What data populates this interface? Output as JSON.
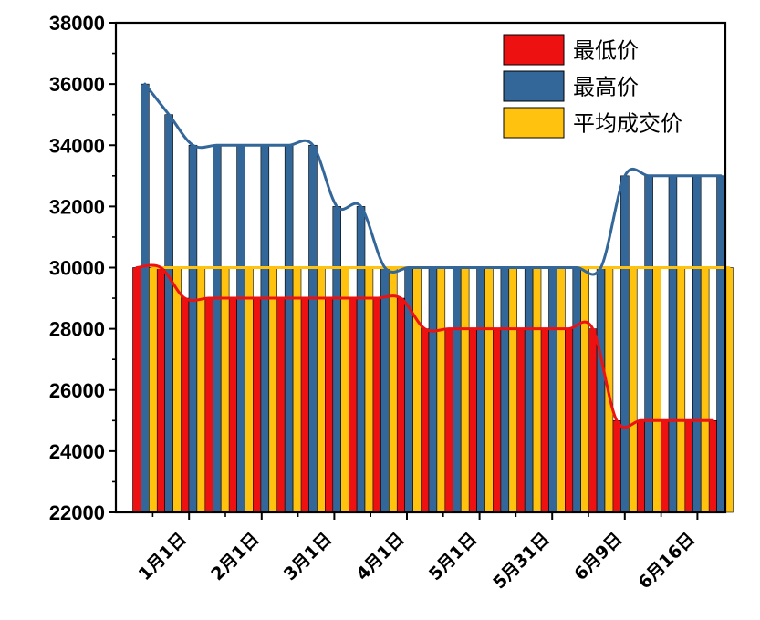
{
  "chart_data": {
    "type": "bar",
    "title": "",
    "xlabel": "",
    "ylabel": "",
    "ylim": [
      22000,
      38000
    ],
    "yticks": [
      22000,
      24000,
      26000,
      28000,
      30000,
      32000,
      34000,
      36000,
      38000
    ],
    "grid": false,
    "legend_position": "top-right",
    "xtick_labels": [
      "1月1日",
      "2月1日",
      "3月1日",
      "4月1日",
      "5月1日",
      "5月31日",
      "6月9日",
      "6月16日"
    ],
    "series": [
      {
        "name": "最低价",
        "color": "#ee1111",
        "values": [
          30000,
          30000,
          29000,
          29000,
          29000,
          29000,
          29000,
          29000,
          29000,
          29000,
          29000,
          29000,
          28000,
          28000,
          28000,
          28000,
          28000,
          28000,
          28000,
          28000,
          25000,
          25000,
          25000,
          25000,
          25000
        ]
      },
      {
        "name": "最高价",
        "color": "#336699",
        "values": [
          36000,
          35000,
          34000,
          34000,
          34000,
          34000,
          34000,
          34000,
          32000,
          32000,
          30000,
          30000,
          30000,
          30000,
          30000,
          30000,
          30000,
          30000,
          30000,
          30000,
          33000,
          33000,
          33000,
          33000,
          33000
        ]
      },
      {
        "name": "平均成交价",
        "color": "#ffc20e",
        "values": [
          30000,
          30000,
          30000,
          30000,
          30000,
          30000,
          30000,
          30000,
          30000,
          30000,
          30000,
          30000,
          30000,
          30000,
          30000,
          30000,
          30000,
          30000,
          30000,
          30000,
          30000,
          30000,
          30000,
          30000,
          30000
        ]
      }
    ]
  }
}
